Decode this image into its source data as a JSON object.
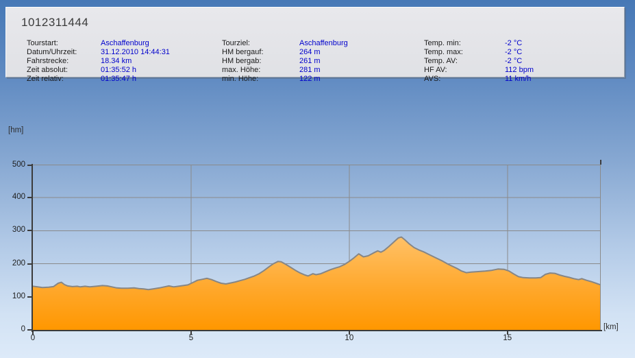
{
  "window": {
    "title": "1012311444"
  },
  "header": {
    "columns": [
      {
        "rows": [
          {
            "label": "Tourstart:",
            "value": "Aschaffenburg"
          },
          {
            "label": "Datum/Uhrzeit:",
            "value": "31.12.2010 14:44:31"
          },
          {
            "label": "Fahrstrecke:",
            "value": "18.34 km"
          },
          {
            "label": "Zeit absolut:",
            "value": "01:35:52 h"
          },
          {
            "label": "Zeit relativ:",
            "value": "01:35:47 h"
          }
        ]
      },
      {
        "rows": [
          {
            "label": "Tourziel:",
            "value": "Aschaffenburg"
          },
          {
            "label": "HM bergauf:",
            "value": "264 m"
          },
          {
            "label": "HM bergab:",
            "value": "261 m"
          },
          {
            "label": "max. Höhe:",
            "value": "281 m"
          },
          {
            "label": "min. Höhe:",
            "value": "122 m"
          }
        ]
      },
      {
        "rows": [
          {
            "label": "Temp. min:",
            "value": "-2 °C"
          },
          {
            "label": "Temp. max:",
            "value": "-2 °C"
          },
          {
            "label": "Temp. AV:",
            "value": "-2 °C"
          },
          {
            "label": "HF AV:",
            "value": "112 bpm"
          },
          {
            "label": "AVS:",
            "value": "11 km/h"
          }
        ]
      }
    ]
  },
  "chart_data": {
    "type": "area",
    "title": "",
    "ylabel": "[hm]",
    "xlabel": "[km]",
    "ylim": [
      0,
      500
    ],
    "xlim": [
      0,
      17.95
    ],
    "y_ticks": [
      0,
      100,
      200,
      300,
      400,
      500
    ],
    "x_ticks": [
      0,
      5,
      10,
      15
    ],
    "grid": true,
    "series_name": "elevation-profile",
    "points": [
      [
        0,
        132
      ],
      [
        0.15,
        130
      ],
      [
        0.3,
        128
      ],
      [
        0.5,
        129
      ],
      [
        0.65,
        131
      ],
      [
        0.8,
        141
      ],
      [
        0.9,
        144
      ],
      [
        1.0,
        137
      ],
      [
        1.1,
        133
      ],
      [
        1.25,
        131
      ],
      [
        1.4,
        132
      ],
      [
        1.5,
        130
      ],
      [
        1.65,
        132
      ],
      [
        1.8,
        130
      ],
      [
        2.0,
        132
      ],
      [
        2.2,
        134
      ],
      [
        2.35,
        133
      ],
      [
        2.5,
        130
      ],
      [
        2.65,
        127
      ],
      [
        2.8,
        126
      ],
      [
        3.0,
        126
      ],
      [
        3.2,
        127
      ],
      [
        3.35,
        125
      ],
      [
        3.5,
        124
      ],
      [
        3.65,
        122
      ],
      [
        3.8,
        124
      ],
      [
        4.0,
        127
      ],
      [
        4.15,
        130
      ],
      [
        4.3,
        133
      ],
      [
        4.45,
        130
      ],
      [
        4.6,
        132
      ],
      [
        4.75,
        134
      ],
      [
        4.9,
        136
      ],
      [
        5.05,
        143
      ],
      [
        5.2,
        150
      ],
      [
        5.35,
        153
      ],
      [
        5.5,
        156
      ],
      [
        5.65,
        152
      ],
      [
        5.8,
        146
      ],
      [
        5.95,
        141
      ],
      [
        6.1,
        139
      ],
      [
        6.25,
        142
      ],
      [
        6.4,
        145
      ],
      [
        6.55,
        149
      ],
      [
        6.7,
        153
      ],
      [
        6.85,
        158
      ],
      [
        7.0,
        163
      ],
      [
        7.15,
        170
      ],
      [
        7.3,
        179
      ],
      [
        7.45,
        190
      ],
      [
        7.6,
        200
      ],
      [
        7.75,
        207
      ],
      [
        7.85,
        206
      ],
      [
        8.0,
        198
      ],
      [
        8.15,
        189
      ],
      [
        8.3,
        180
      ],
      [
        8.45,
        172
      ],
      [
        8.6,
        166
      ],
      [
        8.7,
        163
      ],
      [
        8.85,
        170
      ],
      [
        8.95,
        167
      ],
      [
        9.1,
        170
      ],
      [
        9.25,
        176
      ],
      [
        9.4,
        182
      ],
      [
        9.55,
        187
      ],
      [
        9.7,
        191
      ],
      [
        9.85,
        198
      ],
      [
        10.0,
        207
      ],
      [
        10.15,
        218
      ],
      [
        10.3,
        230
      ],
      [
        10.45,
        221
      ],
      [
        10.6,
        224
      ],
      [
        10.75,
        232
      ],
      [
        10.9,
        239
      ],
      [
        11.0,
        235
      ],
      [
        11.1,
        240
      ],
      [
        11.25,
        252
      ],
      [
        11.4,
        265
      ],
      [
        11.55,
        278
      ],
      [
        11.65,
        281
      ],
      [
        11.75,
        273
      ],
      [
        11.9,
        260
      ],
      [
        12.05,
        249
      ],
      [
        12.2,
        242
      ],
      [
        12.35,
        236
      ],
      [
        12.5,
        229
      ],
      [
        12.65,
        222
      ],
      [
        12.8,
        215
      ],
      [
        12.95,
        208
      ],
      [
        13.1,
        200
      ],
      [
        13.25,
        193
      ],
      [
        13.4,
        186
      ],
      [
        13.55,
        178
      ],
      [
        13.7,
        173
      ],
      [
        13.85,
        175
      ],
      [
        14.0,
        176
      ],
      [
        14.15,
        177
      ],
      [
        14.3,
        178
      ],
      [
        14.5,
        180
      ],
      [
        14.7,
        184
      ],
      [
        14.9,
        183
      ],
      [
        15.05,
        178
      ],
      [
        15.2,
        169
      ],
      [
        15.35,
        161
      ],
      [
        15.5,
        158
      ],
      [
        15.7,
        157
      ],
      [
        15.9,
        157
      ],
      [
        16.05,
        158
      ],
      [
        16.2,
        168
      ],
      [
        16.35,
        172
      ],
      [
        16.5,
        171
      ],
      [
        16.65,
        166
      ],
      [
        16.8,
        162
      ],
      [
        16.95,
        159
      ],
      [
        17.1,
        155
      ],
      [
        17.25,
        152
      ],
      [
        17.35,
        155
      ],
      [
        17.5,
        150
      ],
      [
        17.65,
        146
      ],
      [
        17.8,
        141
      ],
      [
        17.95,
        136
      ]
    ]
  },
  "colors": {
    "value_text": "#0000CC",
    "area_fill_top": "#FFC167",
    "area_fill_mid": "#FFA82C",
    "area_fill_bottom": "#FF9700",
    "area_stroke": "#868686",
    "grid_line": "#8A8A8A",
    "axis_line": "#3B3B3B"
  }
}
